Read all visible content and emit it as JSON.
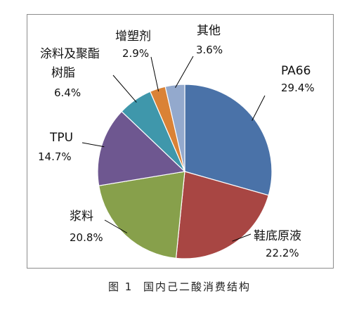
{
  "caption": {
    "figure_no": "图 1",
    "text": "国内己二酸消费结构"
  },
  "chart_data": {
    "type": "pie",
    "slices": [
      {
        "label": "PA66",
        "value": 29.4,
        "value_text": "29.4%",
        "color": "#4a72a8"
      },
      {
        "label": "鞋底原液",
        "value": 22.2,
        "value_text": "22.2%",
        "color": "#a84643"
      },
      {
        "label": "浆料",
        "value": 20.8,
        "value_text": "20.8%",
        "color": "#87a04b"
      },
      {
        "label": "TPU",
        "value": 14.7,
        "value_text": "14.7%",
        "color": "#6e5790"
      },
      {
        "label": "涂料及聚酯树脂",
        "value": 6.4,
        "value_text": "6.4%",
        "color": "#3f97ab"
      },
      {
        "label": "增塑剂",
        "value": 2.9,
        "value_text": "2.9%",
        "color": "#da8236"
      },
      {
        "label": "其他",
        "value": 3.6,
        "value_text": "3.6%",
        "color": "#93a9cd"
      }
    ]
  }
}
